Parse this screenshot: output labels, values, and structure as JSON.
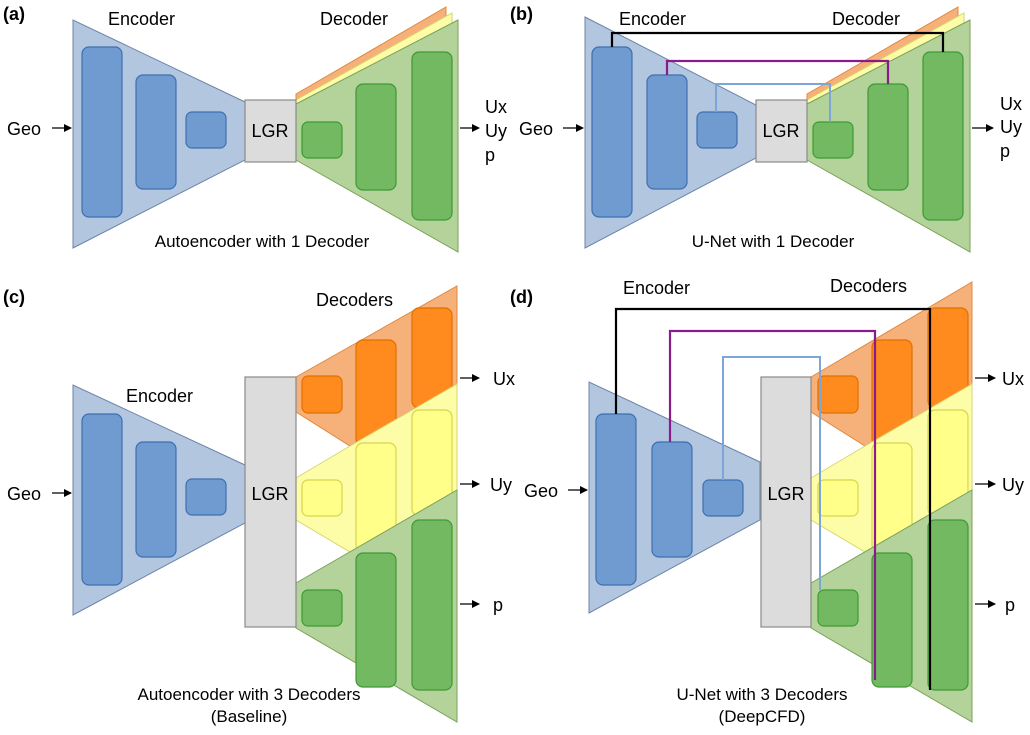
{
  "panels": {
    "a": {
      "letter": "(a)",
      "encoder": "Encoder",
      "decoder": "Decoder",
      "lgr": "LGR",
      "input": "Geo",
      "outputs": [
        "Ux",
        "Uy",
        "p"
      ],
      "caption": "Autoencoder with 1 Decoder"
    },
    "b": {
      "letter": "(b)",
      "encoder": "Encoder",
      "decoder": "Decoder",
      "lgr": "LGR",
      "input": "Geo",
      "outputs": [
        "Ux",
        "Uy",
        "p"
      ],
      "caption": "U-Net with 1 Decoder"
    },
    "c": {
      "letter": "(c)",
      "encoder": "Encoder",
      "decoder": "Decoders",
      "lgr": "LGR",
      "input": "Geo",
      "outputs": [
        "Ux",
        "Uy",
        "p"
      ],
      "caption_line1": "Autoencoder with 3 Decoders",
      "caption_line2": "(Baseline)"
    },
    "d": {
      "letter": "(d)",
      "encoder": "Encoder",
      "decoder": "Decoders",
      "lgr": "LGR",
      "input": "Geo",
      "outputs": [
        "Ux",
        "Uy",
        "p"
      ],
      "caption_line1": "U-Net with 3 Decoders",
      "caption_line2": "(DeepCFD)"
    }
  },
  "colors": {
    "encoder": "#6f9bd1",
    "decoder_p": "#72b962",
    "decoder_ux": "#ff8a1e",
    "decoder_uy": "#ffff8a",
    "lgr": "#dcdcdc",
    "skip_outer": "#000000",
    "skip_middle": "#8b1a8b",
    "skip_inner": "#7ca6d8"
  }
}
